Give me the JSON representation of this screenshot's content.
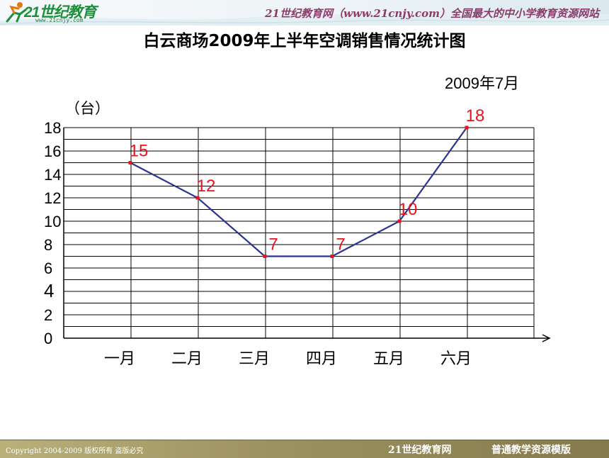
{
  "header": {
    "logo_text": "21世纪教育",
    "logo_url_text": "www.21cnjy.com",
    "slogan": "21世纪教育网（www.21cnjy.com）全国最大的中小学教育资源网站"
  },
  "footer": {
    "copyright": "Copyright 2004-2009 版权所有 盗版必究",
    "site_name": "21世纪教育网",
    "template_name": "普通教学资源模版"
  },
  "colors": {
    "line": "#2b3590",
    "marker": "#e8141e",
    "data_label": "#e8141e",
    "grid": "#000000"
  },
  "chart_data": {
    "type": "line",
    "title": "白云商场2009年上半年空调销售情况统计图",
    "date_note": "2009年7月",
    "ylabel": "（台）",
    "xlabel": "",
    "categories": [
      "一月",
      "二月",
      "三月",
      "四月",
      "五月",
      "六月"
    ],
    "series": [
      {
        "values": [
          15,
          12,
          7,
          7,
          10,
          18
        ]
      }
    ],
    "data_labels": [
      "15",
      "12",
      "7",
      "7",
      "10",
      "18"
    ],
    "ylim": [
      0,
      18
    ],
    "yticks": [
      0,
      2,
      4,
      6,
      8,
      10,
      12,
      14,
      16,
      18
    ],
    "ytick_labels": [
      "0",
      "2",
      "4",
      "6",
      "8",
      "10",
      "12",
      "14",
      "16",
      "18"
    ],
    "grid": true,
    "legend": "none"
  }
}
